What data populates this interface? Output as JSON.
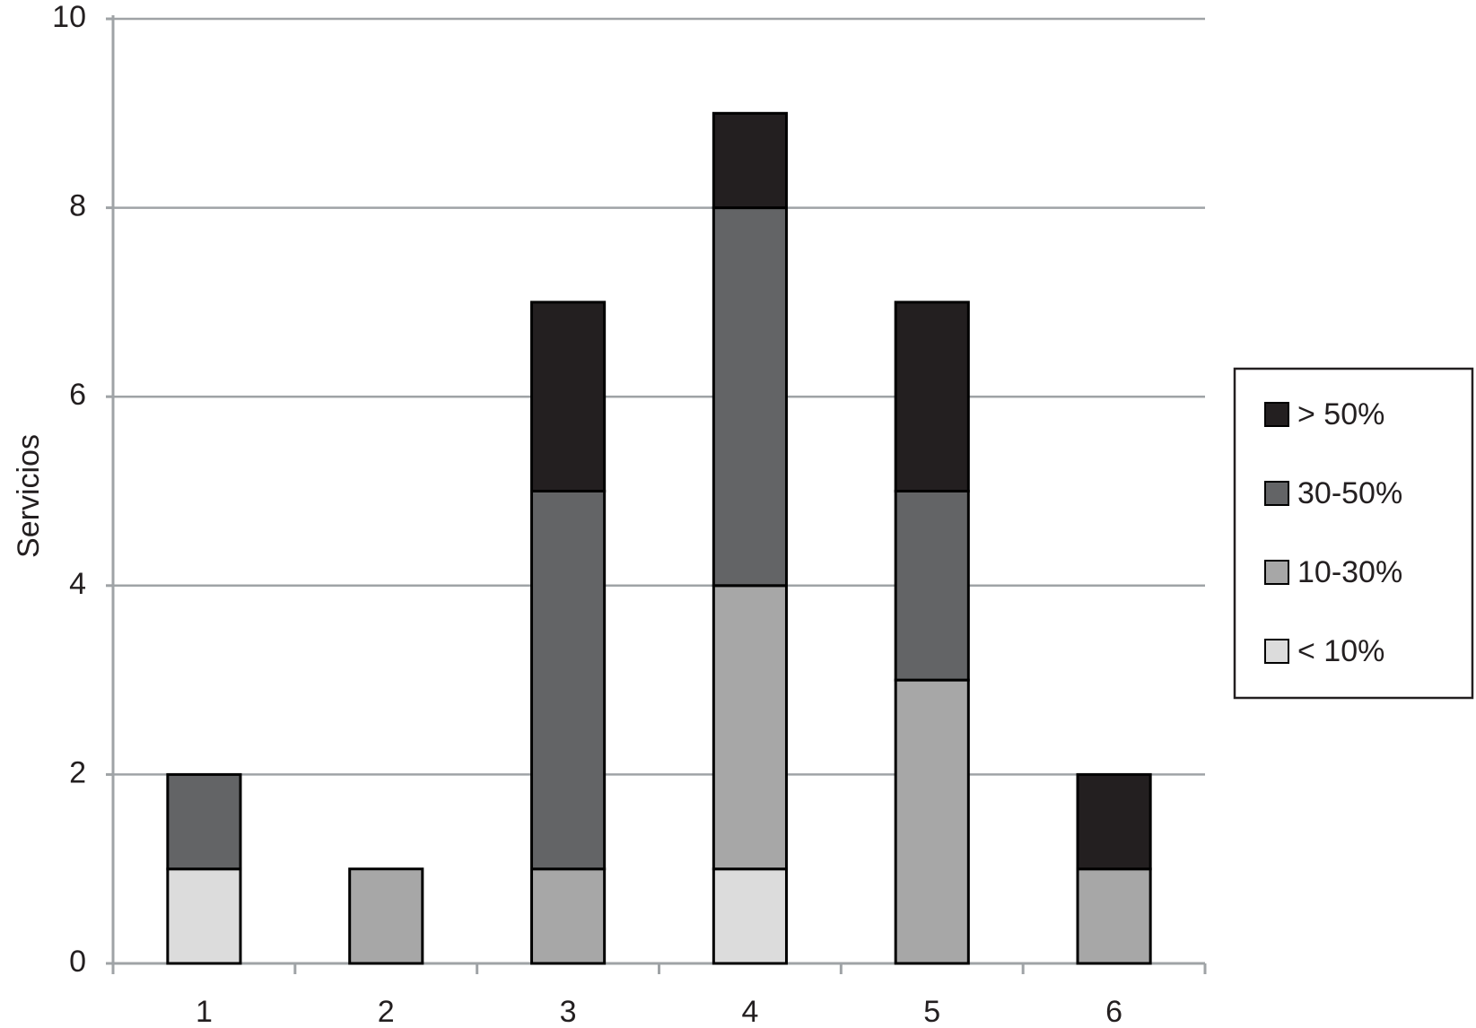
{
  "chart_data": {
    "type": "stacked_bar",
    "y_label": "Servicios",
    "categories": [
      "1",
      "2",
      "3",
      "4",
      "5",
      "6"
    ],
    "series": [
      {
        "name": "< 10%",
        "color": "#dcdcdc",
        "values": [
          1,
          0,
          0,
          1,
          0,
          0
        ]
      },
      {
        "name": "10-30%",
        "color": "#a7a7a7",
        "values": [
          0,
          1,
          1,
          3,
          3,
          1
        ]
      },
      {
        "name": "30-50%",
        "color": "#636466",
        "values": [
          1,
          0,
          4,
          4,
          2,
          0
        ]
      },
      {
        "name": "> 50%",
        "color": "#231f20",
        "values": [
          0,
          0,
          2,
          1,
          2,
          1
        ]
      }
    ],
    "ylim": [
      0,
      10
    ],
    "yticks": [
      0,
      2,
      4,
      6,
      8,
      10
    ],
    "grid": true,
    "legend": "right"
  }
}
